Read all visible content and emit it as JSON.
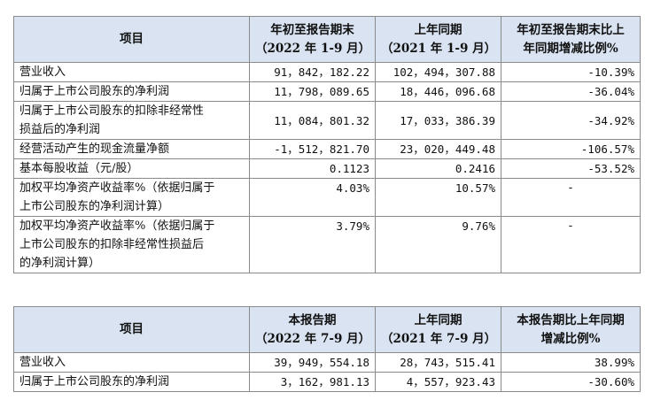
{
  "table1": {
    "headers": [
      {
        "lines": [
          "项目"
        ]
      },
      {
        "lines": [
          "年初至报告期末",
          "（2022 年 1-9 月）"
        ]
      },
      {
        "lines": [
          "上年同期",
          "（2021 年 1-9 月）"
        ]
      },
      {
        "lines": [
          "年初至报告期末比上",
          "年同期增减比例%"
        ]
      }
    ],
    "rows": [
      {
        "label_lines": [
          "营业收入"
        ],
        "v1": "91，842，182.22",
        "v2": "102，494，307.88",
        "v3": "-10.39%"
      },
      {
        "label_lines": [
          "归属于上市公司股东的净利润"
        ],
        "v1": "11，798，089.65",
        "v2": "18，446，096.68",
        "v3": "-36.04%"
      },
      {
        "label_lines": [
          "归属于上市公司股东的扣除非经常性",
          "损益后的净利润"
        ],
        "v1": "11，084，801.32",
        "v2": "17，033，386.39",
        "v3": "-34.92%"
      },
      {
        "label_lines": [
          "经营活动产生的现金流量净额"
        ],
        "v1": "-1，512，821.70",
        "v2": "23，020，449.48",
        "v3": "-106.57%"
      },
      {
        "label_lines": [
          "基本每股收益（元/股）"
        ],
        "v1": "0.1123",
        "v2": "0.2416",
        "v3": "-53.52%"
      },
      {
        "label_lines": [
          "加权平均净资产收益率%（依据归属于",
          "上市公司股东的净利润计算）"
        ],
        "v1": "4.03%",
        "v2": "10.57%",
        "v3": "-"
      },
      {
        "label_lines": [
          "加权平均净资产收益率%（依据归属于",
          "上市公司股东的扣除非经常性损益后",
          "的净利润计算）"
        ],
        "v1": "3.79%",
        "v2": "9.76%",
        "v3": "-"
      }
    ]
  },
  "table2": {
    "headers": [
      {
        "lines": [
          "项目"
        ]
      },
      {
        "lines": [
          "本报告期",
          "（2022 年 7-9 月）"
        ]
      },
      {
        "lines": [
          "上年同期",
          "（2021 年 7-9 月）"
        ]
      },
      {
        "lines": [
          "本报告期比上年同期",
          "增减比例%"
        ]
      }
    ],
    "rows": [
      {
        "label_lines": [
          "营业收入"
        ],
        "v1": "39，949，554.18",
        "v2": "28，743，515.41",
        "v3": "38.99%"
      },
      {
        "label_lines": [
          "归属于上市公司股东的净利润"
        ],
        "v1": "3，162，981.13",
        "v2": "4，557，923.43",
        "v3": "-30.60%"
      }
    ]
  }
}
